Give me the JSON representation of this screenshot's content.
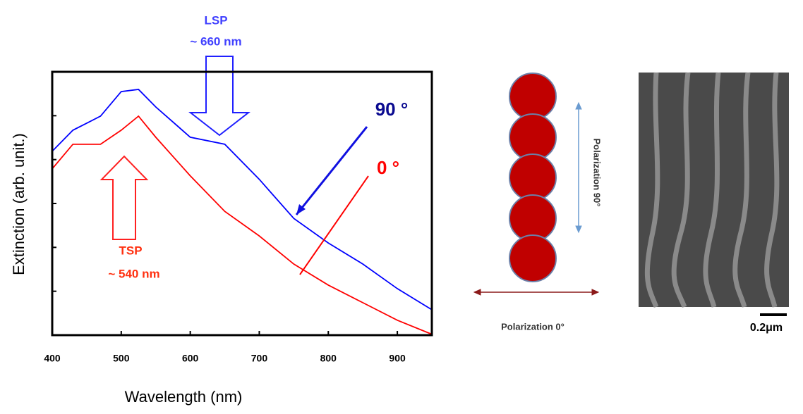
{
  "chart_data": {
    "type": "line",
    "x_label": "Wavelength (nm)",
    "y_label": "Extinction (arb. unit.)",
    "x": [
      400,
      430,
      470,
      500,
      525,
      550,
      600,
      650,
      700,
      750,
      800,
      850,
      900,
      950
    ],
    "series": [
      {
        "name": "90 °",
        "color": "#0000ff",
        "values": [
          4.19,
          4.67,
          4.99,
          5.55,
          5.6,
          5.2,
          4.51,
          4.35,
          3.55,
          2.66,
          2.1,
          1.62,
          1.06,
          0.58
        ]
      },
      {
        "name": "0 °",
        "color": "#ff0000",
        "values": [
          3.79,
          4.35,
          4.35,
          4.67,
          4.99,
          4.51,
          3.63,
          2.82,
          2.26,
          1.62,
          1.14,
          0.74,
          0.34,
          0.02
        ]
      }
    ],
    "xlim": [
      400,
      950
    ],
    "xticks": [
      400,
      500,
      600,
      700,
      800,
      900
    ],
    "ylim": [
      0,
      6
    ],
    "yticks": [
      1,
      2,
      3,
      4,
      5
    ],
    "annotations": {
      "lsp": "LSP",
      "lsp_wavelength": "~ 660 nm",
      "tsp": "TSP",
      "tsp_wavelength": "~ 540 nm"
    }
  },
  "diagram": {
    "polarization_90": "Polarization 90°",
    "polarization_0": "Polarization 0°"
  },
  "image": {
    "scale_label": "0.2μm"
  }
}
